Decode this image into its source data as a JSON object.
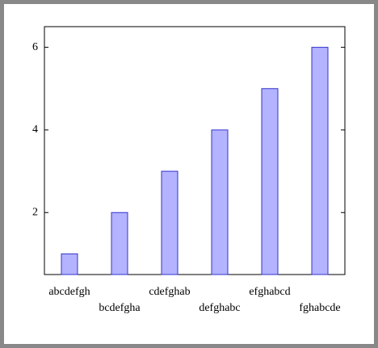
{
  "chart_data": {
    "type": "bar",
    "categories": [
      "abcdefgh",
      "bcdefgha",
      "cdefghab",
      "defghabc",
      "efghabcd",
      "fghabcde"
    ],
    "values": [
      1,
      2,
      3,
      4,
      5,
      6
    ],
    "color": "#b3b3ff",
    "edge_color": "#3333cc",
    "ylim": [
      0.5,
      6.5
    ],
    "yticks": [
      2,
      4,
      6
    ]
  }
}
